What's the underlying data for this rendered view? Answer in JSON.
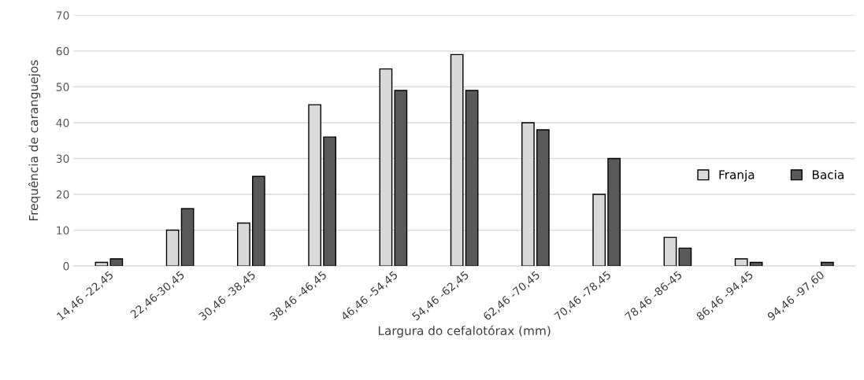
{
  "chart_data": {
    "type": "bar",
    "xlabel": "Largura do cefalotórax (mm)",
    "ylabel": "Frequência de caranguejos",
    "categories": [
      "14,46 -22,45",
      "22,46-30,45",
      "30,46 -38,45",
      "38,46 -46,45",
      "46,46 -54,45",
      "54,46 -62,45",
      "62,46 -70,45",
      "70,46 -78,45",
      "78,46 -86-45",
      "86,46 -94,45",
      "94,46 -97,60"
    ],
    "series": [
      {
        "name": "Franja",
        "color": "#d9d9d9",
        "values": [
          1,
          10,
          12,
          45,
          55,
          59,
          40,
          20,
          8,
          2,
          null
        ]
      },
      {
        "name": "Bacia",
        "color": "#595959",
        "values": [
          2,
          16,
          25,
          36,
          49,
          49,
          38,
          30,
          5,
          1,
          1
        ]
      }
    ],
    "ylim": [
      0,
      70
    ],
    "yticks": [
      0,
      10,
      20,
      30,
      40,
      50,
      60,
      70
    ],
    "grid": "y",
    "legend": "right"
  }
}
